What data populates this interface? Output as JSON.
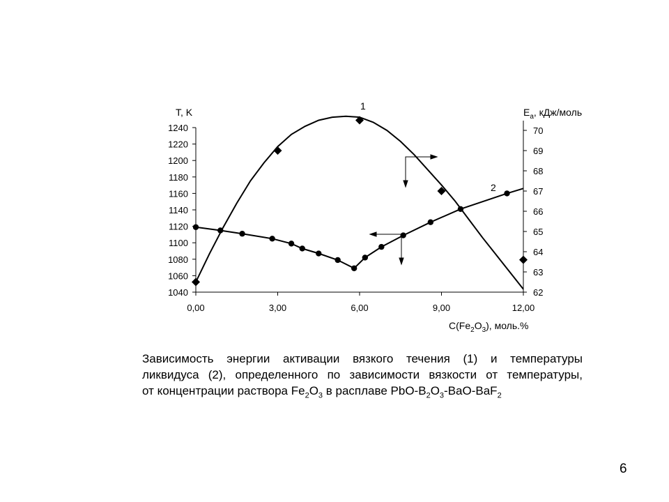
{
  "slide_number": "6",
  "caption": {
    "l1": "Зависимость энергии активации вязкого течения (1) и температуры",
    "l2": "ликвидуса (2), определенного по зависимости вязкости от температуры,",
    "l3_a": "от концентрации раствора Fe",
    "l3_s1": "2",
    "l3_b": "O",
    "l3_s2": "3",
    "l3_c": " в расплаве PbO-B",
    "l3_s3": "2",
    "l3_d": "O",
    "l3_s4": "3",
    "l3_e": "-BaO-BaF",
    "l3_s5": "2"
  },
  "chart_data": {
    "type": "line",
    "title": "",
    "xlabel": {
      "a": "C(Fe",
      "s1": "2",
      "b": "O",
      "s2": "3",
      "c": "), моль.%"
    },
    "ylabel_left": "T, K",
    "ylabel_right": {
      "a": "E",
      "s": "a",
      "b": ", кДж/моль"
    },
    "xlim": [
      0,
      12
    ],
    "ylim_left": [
      1040,
      1240
    ],
    "ylim_right": [
      62,
      70
    ],
    "x_ticks": [
      "0,00",
      "3,00",
      "6,00",
      "9,00",
      "12,00"
    ],
    "y_ticks_left": [
      "1040",
      "1060",
      "1080",
      "1100",
      "1120",
      "1140",
      "1160",
      "1180",
      "1200",
      "1220",
      "1240"
    ],
    "y_ticks_right": [
      "62",
      "63",
      "64",
      "65",
      "66",
      "67",
      "68",
      "69",
      "70"
    ],
    "grid": false,
    "curve_labels": [
      "1",
      "2"
    ],
    "series": [
      {
        "name": "1",
        "axis": "right",
        "marker": "diamond",
        "points": [
          {
            "x": 0.0,
            "y": 62.5
          },
          {
            "x": 3.0,
            "y": 69.0
          },
          {
            "x": 6.0,
            "y": 70.5
          },
          {
            "x": 9.0,
            "y": 67.0
          },
          {
            "x": 12.0,
            "y": 63.6
          }
        ],
        "curve": [
          {
            "x": 0.0,
            "y": 62.5
          },
          {
            "x": 0.5,
            "y": 63.9
          },
          {
            "x": 1.0,
            "y": 65.2
          },
          {
            "x": 1.5,
            "y": 66.4
          },
          {
            "x": 2.0,
            "y": 67.5
          },
          {
            "x": 2.5,
            "y": 68.4
          },
          {
            "x": 3.0,
            "y": 69.2
          },
          {
            "x": 3.5,
            "y": 69.8
          },
          {
            "x": 4.0,
            "y": 70.2
          },
          {
            "x": 4.5,
            "y": 70.5
          },
          {
            "x": 5.0,
            "y": 70.65
          },
          {
            "x": 5.5,
            "y": 70.7
          },
          {
            "x": 6.0,
            "y": 70.65
          },
          {
            "x": 6.5,
            "y": 70.4
          },
          {
            "x": 7.0,
            "y": 70.0
          },
          {
            "x": 7.5,
            "y": 69.45
          },
          {
            "x": 8.0,
            "y": 68.8
          },
          {
            "x": 8.5,
            "y": 68.05
          },
          {
            "x": 9.0,
            "y": 67.3
          },
          {
            "x": 9.5,
            "y": 66.5
          },
          {
            "x": 10.0,
            "y": 65.6
          },
          {
            "x": 10.5,
            "y": 64.7
          },
          {
            "x": 11.0,
            "y": 63.85
          },
          {
            "x": 11.5,
            "y": 63.0
          },
          {
            "x": 12.0,
            "y": 62.15
          }
        ]
      },
      {
        "name": "2",
        "axis": "left",
        "marker": "circle",
        "points": [
          {
            "x": 0.0,
            "y": 1119
          },
          {
            "x": 0.9,
            "y": 1115
          },
          {
            "x": 1.7,
            "y": 1111
          },
          {
            "x": 2.8,
            "y": 1105
          },
          {
            "x": 3.5,
            "y": 1099
          },
          {
            "x": 3.9,
            "y": 1093
          },
          {
            "x": 4.5,
            "y": 1087
          },
          {
            "x": 5.2,
            "y": 1079
          },
          {
            "x": 5.8,
            "y": 1069
          },
          {
            "x": 6.2,
            "y": 1082
          },
          {
            "x": 6.8,
            "y": 1095
          },
          {
            "x": 7.6,
            "y": 1109
          },
          {
            "x": 8.6,
            "y": 1125
          },
          {
            "x": 9.7,
            "y": 1141
          },
          {
            "x": 11.4,
            "y": 1160
          }
        ],
        "line_end": {
          "x": 12.0,
          "y": 1166
        }
      }
    ]
  }
}
